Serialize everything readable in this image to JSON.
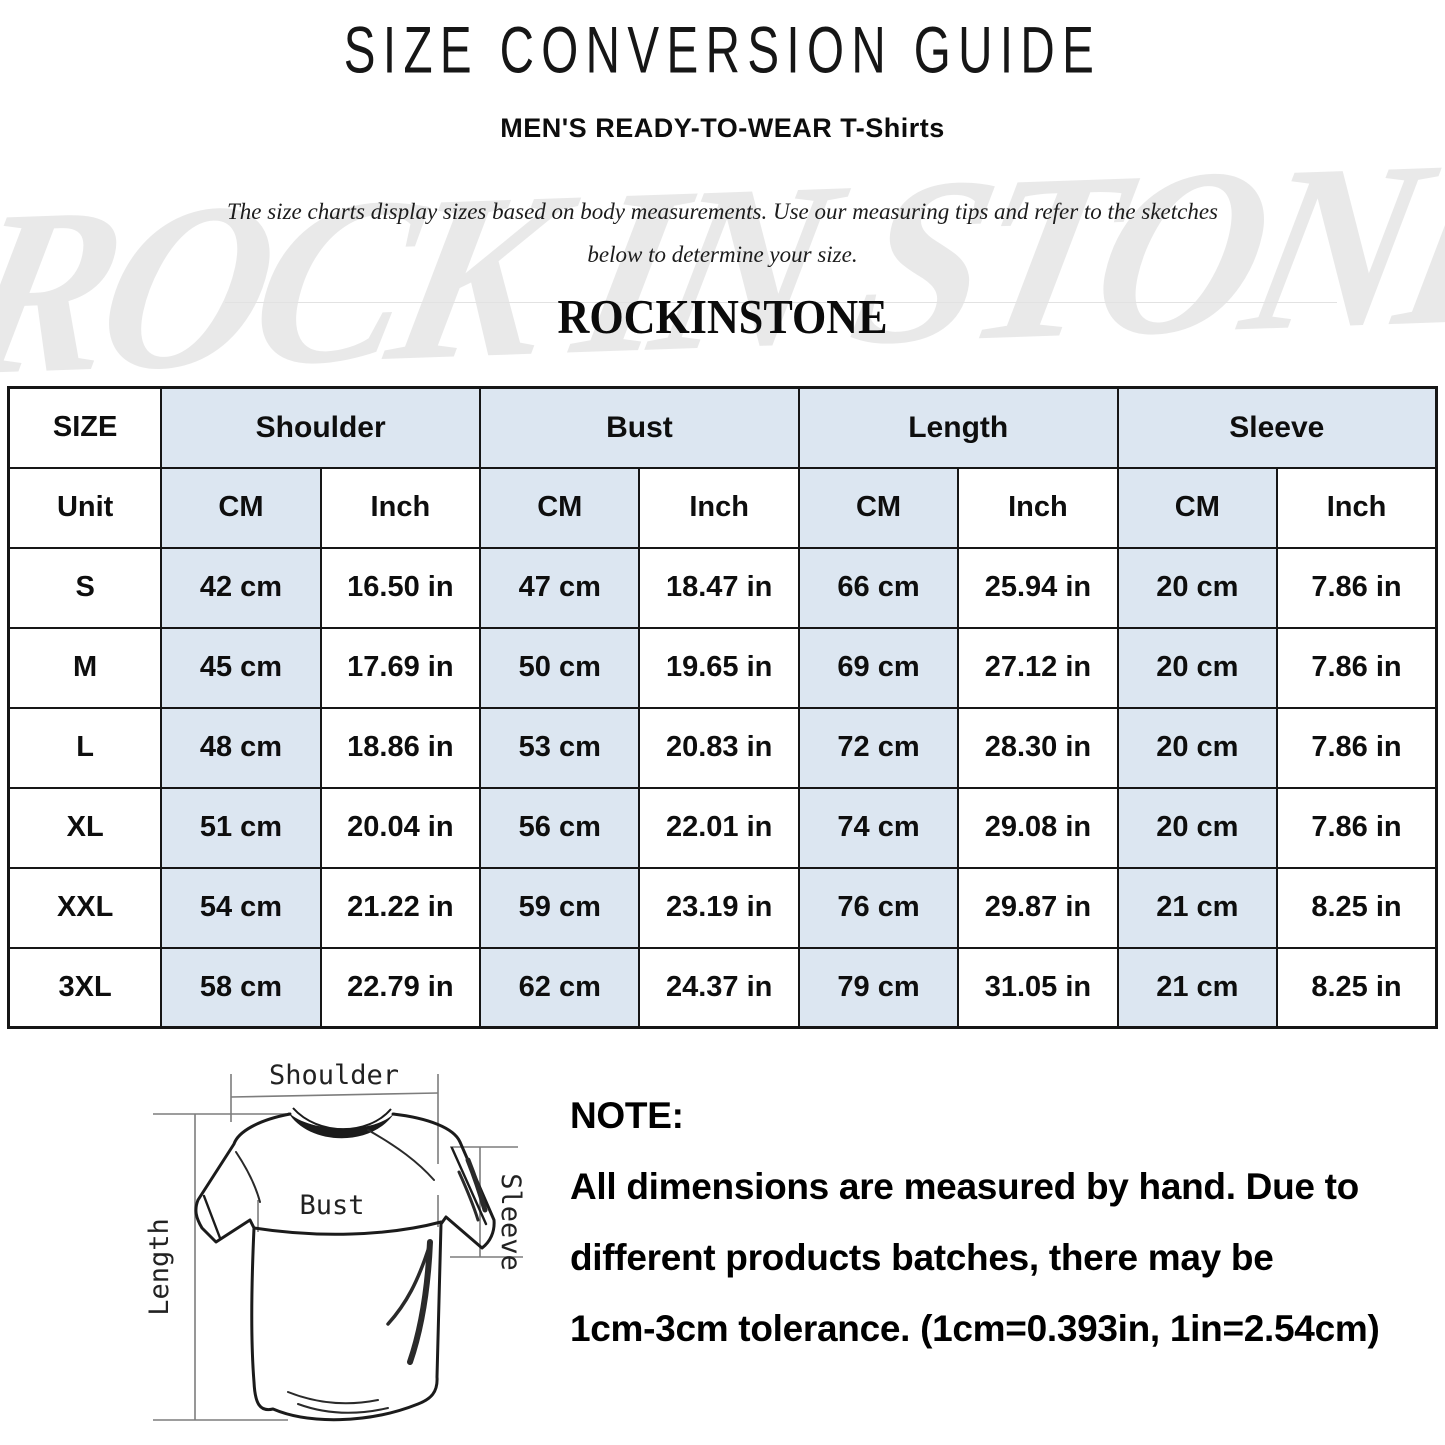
{
  "header": {
    "title": "SIZE CONVERSION GUIDE",
    "subtitle": "MEN'S READY-TO-WEAR T-Shirts",
    "description_line1": "The size charts display sizes based on body measurements. Use our measuring tips and refer to the sketches",
    "description_line2": "below to determine your size.",
    "brand": "ROCKINSTONE",
    "watermark": "ROCK IN STONE"
  },
  "size_table": {
    "corner_label": "SIZE",
    "unit_label": "Unit",
    "groups": [
      "Shoulder",
      "Bust",
      "Length",
      "Sleeve"
    ],
    "unit_columns": [
      "CM",
      "Inch"
    ],
    "rows": [
      {
        "size": "S",
        "values": [
          "42 cm",
          "16.50 in",
          "47 cm",
          "18.47 in",
          "66 cm",
          "25.94 in",
          "20 cm",
          "7.86 in"
        ]
      },
      {
        "size": "M",
        "values": [
          "45 cm",
          "17.69 in",
          "50 cm",
          "19.65 in",
          "69 cm",
          "27.12 in",
          "20 cm",
          "7.86 in"
        ]
      },
      {
        "size": "L",
        "values": [
          "48 cm",
          "18.86 in",
          "53 cm",
          "20.83 in",
          "72 cm",
          "28.30 in",
          "20 cm",
          "7.86 in"
        ]
      },
      {
        "size": "XL",
        "values": [
          "51 cm",
          "20.04 in",
          "56 cm",
          "22.01 in",
          "74 cm",
          "29.08 in",
          "20 cm",
          "7.86 in"
        ]
      },
      {
        "size": "XXL",
        "values": [
          "54 cm",
          "21.22 in",
          "59 cm",
          "23.19 in",
          "76 cm",
          "29.87 in",
          "21 cm",
          "8.25 in"
        ]
      },
      {
        "size": "3XL",
        "values": [
          "58 cm",
          "22.79 in",
          "62 cm",
          "24.37 in",
          "79 cm",
          "31.05 in",
          "21 cm",
          "8.25 in"
        ]
      }
    ]
  },
  "diagram": {
    "shoulder_label": "Shoulder",
    "bust_label": "Bust",
    "length_label": "Length",
    "sleeve_label": "Sleeve"
  },
  "note": {
    "heading": "NOTE:",
    "line1": "All dimensions are measured by hand. Due to",
    "line2": "different products batches, there may be",
    "line3": "1cm-3cm tolerance. (1cm=0.393in, 1in=2.54cm)"
  },
  "colors": {
    "cell_highlight": "#dce6f1",
    "table_border": "#161616",
    "watermark_gray": "#e8e8e8"
  }
}
